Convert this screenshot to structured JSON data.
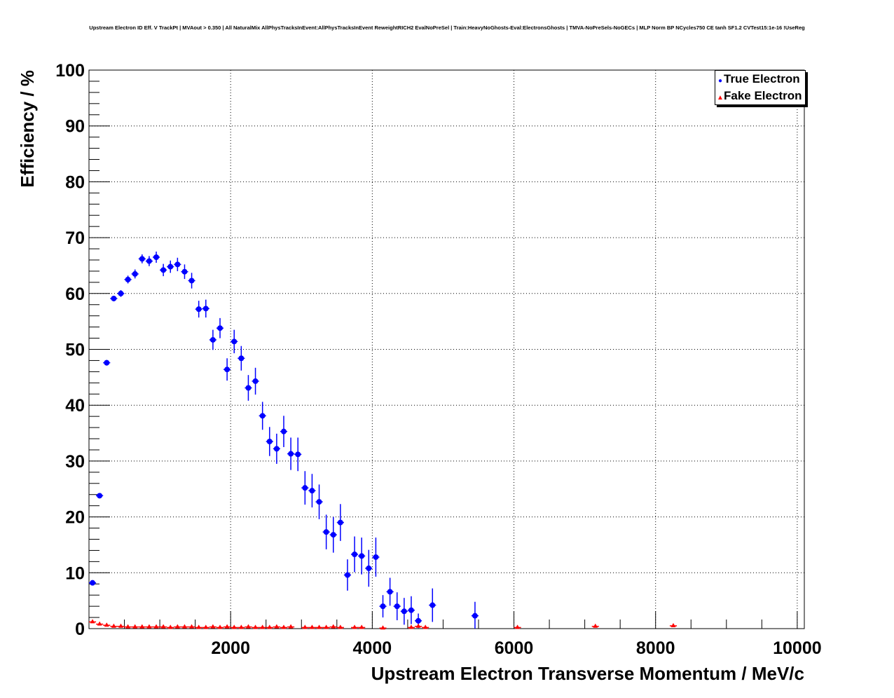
{
  "chart_data": {
    "type": "scatter",
    "title": "Upstream Electron ID Eff. V TrackPt | MVAout > 0.350 | All NaturalMix AllPhysTracksInEvent:AllPhysTracksInEvent ReweightRICH2 EvalNoPreSel | Train:HeavyNoGhosts-Eval:ElectronsGhosts | TMVA-NoPreSels-NoGECs | MLP Norm BP NCycles750 CE tanh SF1.2 CVTest15:1e-16 !UseReg",
    "xlabel": "Upstream Electron Transverse Momentum / MeV/c",
    "ylabel": "Efficiency / %",
    "xlim": [
      0,
      10100
    ],
    "ylim": [
      0,
      100
    ],
    "xticks": [
      2000,
      4000,
      6000,
      8000,
      10000
    ],
    "yticks": [
      0,
      10,
      20,
      30,
      40,
      50,
      60,
      70,
      80,
      90,
      100
    ],
    "grid": true,
    "legend_position": "top-right",
    "series": [
      {
        "name": "True Electron",
        "color": "#0000ff",
        "marker": "circle",
        "x": [
          50,
          150,
          250,
          350,
          450,
          550,
          650,
          750,
          850,
          950,
          1050,
          1150,
          1250,
          1350,
          1450,
          1550,
          1650,
          1750,
          1850,
          1950,
          2050,
          2150,
          2250,
          2350,
          2450,
          2550,
          2650,
          2750,
          2850,
          2950,
          3050,
          3150,
          3250,
          3350,
          3450,
          3550,
          3650,
          3750,
          3850,
          3950,
          4050,
          4150,
          4250,
          4350,
          4450,
          4550,
          4650,
          4850,
          5450
        ],
        "y": [
          8.2,
          23.8,
          47.6,
          59.1,
          60.0,
          62.5,
          63.5,
          66.2,
          65.8,
          66.5,
          64.2,
          64.8,
          65.2,
          63.9,
          62.3,
          57.2,
          57.3,
          51.7,
          53.8,
          46.4,
          51.4,
          48.4,
          43.1,
          44.3,
          38.1,
          33.5,
          32.2,
          35.3,
          31.3,
          31.2,
          25.2,
          24.7,
          22.7,
          17.3,
          16.8,
          19.0,
          9.6,
          13.3,
          13.0,
          10.8,
          12.8,
          4.0,
          6.6,
          4.0,
          3.1,
          3.3,
          1.4,
          4.2,
          2.3
        ],
        "yerr": [
          0.3,
          0.4,
          0.5,
          0.5,
          0.6,
          0.7,
          0.8,
          0.8,
          0.9,
          1.0,
          1.1,
          1.1,
          1.2,
          1.3,
          1.4,
          1.5,
          1.6,
          1.8,
          1.8,
          2.0,
          2.1,
          2.2,
          2.3,
          2.4,
          2.5,
          2.6,
          2.7,
          2.8,
          2.9,
          3.0,
          3.0,
          3.0,
          3.1,
          3.1,
          3.2,
          3.3,
          2.8,
          3.2,
          3.3,
          3.3,
          3.5,
          2.0,
          2.5,
          2.5,
          2.4,
          2.5,
          1.3,
          3.0,
          2.5
        ]
      },
      {
        "name": "Fake Electron",
        "color": "#ff0000",
        "marker": "triangle",
        "x": [
          50,
          150,
          250,
          350,
          450,
          550,
          650,
          750,
          850,
          950,
          1050,
          1150,
          1250,
          1350,
          1450,
          1550,
          1650,
          1750,
          1850,
          1950,
          2050,
          2150,
          2250,
          2350,
          2450,
          2550,
          2650,
          2750,
          2850,
          3050,
          3150,
          3250,
          3350,
          3450,
          3550,
          3750,
          3850,
          4150,
          4550,
          4650,
          4750,
          6050,
          7150,
          8250
        ],
        "y": [
          1.2,
          0.8,
          0.6,
          0.4,
          0.4,
          0.3,
          0.3,
          0.3,
          0.3,
          0.3,
          0.3,
          0.2,
          0.3,
          0.3,
          0.3,
          0.2,
          0.2,
          0.3,
          0.2,
          0.3,
          0.2,
          0.2,
          0.3,
          0.2,
          0.2,
          0.2,
          0.3,
          0.2,
          0.3,
          0.2,
          0.2,
          0.2,
          0.2,
          0.3,
          0.2,
          0.2,
          0.2,
          0.1,
          0.2,
          0.4,
          0.2,
          0.2,
          0.4,
          0.5
        ]
      }
    ]
  },
  "legend": {
    "true_label": "True Electron",
    "fake_label": "Fake Electron"
  }
}
